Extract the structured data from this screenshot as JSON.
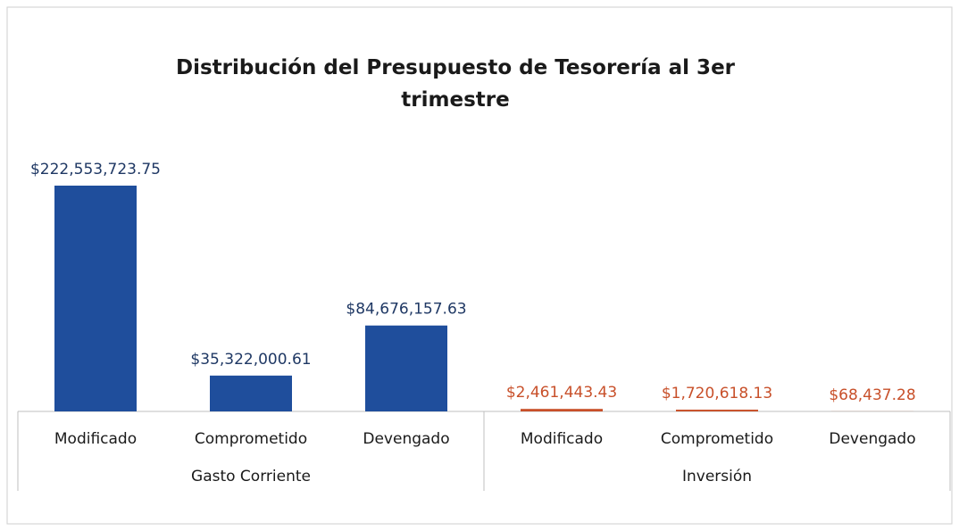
{
  "chart_data": {
    "type": "bar",
    "title": "Distribución del Presupuesto de Tesorería al 3er trimestre",
    "series": [
      {
        "name": "Gasto Corriente",
        "color": "#1f4e9c",
        "categories": [
          "Modificado",
          "Comprometido",
          "Devengado"
        ],
        "values": [
          222553723.75,
          35322000.61,
          84676157.63
        ],
        "value_labels": [
          "$222,553,723.75",
          "$35,322,000.61",
          "$84,676,157.63"
        ]
      },
      {
        "name": "Inversión",
        "color": "#c8502a",
        "categories": [
          "Modificado",
          "Comprometido",
          "Devengado"
        ],
        "values": [
          2461443.43,
          1720618.13,
          68437.28
        ],
        "value_labels": [
          "$2,461,443.43",
          "$1,720,618.13",
          "$68,437.28"
        ]
      }
    ]
  }
}
